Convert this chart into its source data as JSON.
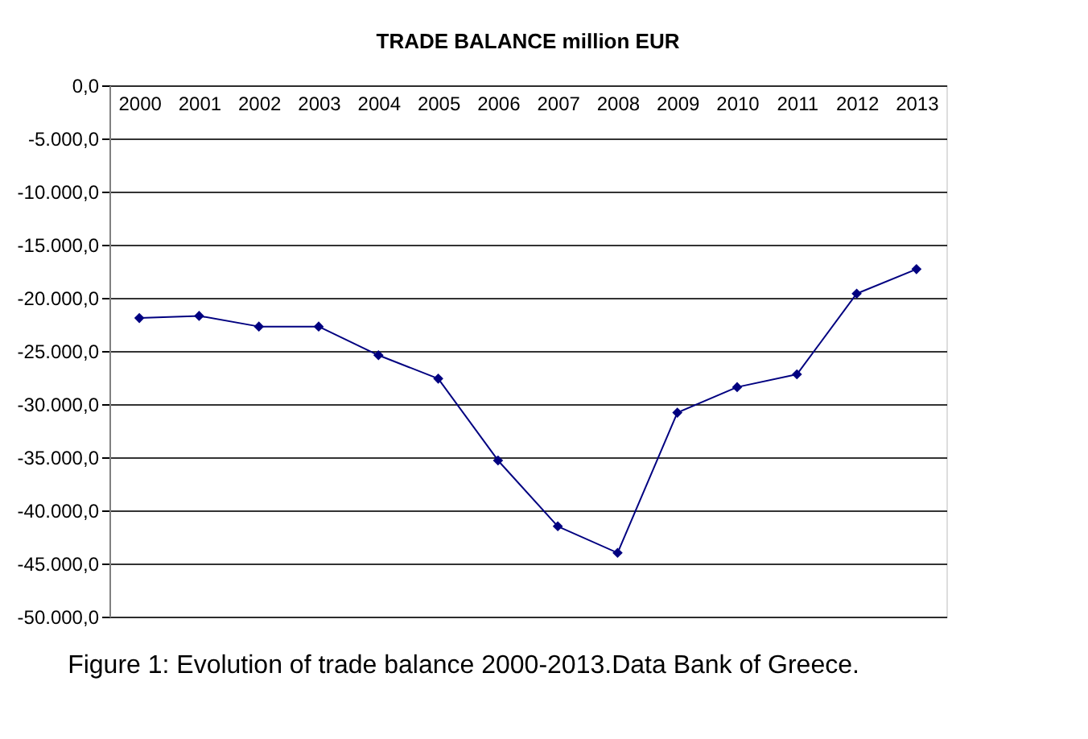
{
  "chart_data": {
    "type": "line",
    "title": "TRADE BALANCE million EUR",
    "categories": [
      "2000",
      "2001",
      "2002",
      "2003",
      "2004",
      "2005",
      "2006",
      "2007",
      "2008",
      "2009",
      "2010",
      "2011",
      "2012",
      "2013"
    ],
    "series": [
      {
        "color": "#000080",
        "values": [
          -21900,
          -21700,
          -22700,
          -22700,
          -25400,
          -27600,
          -35300,
          -41500,
          -44000,
          -30800,
          -28400,
          -27200,
          -19600,
          -17300
        ]
      }
    ],
    "ylim": [
      -50000,
      0
    ],
    "yticks": [
      {
        "value": 0,
        "label": "0,0"
      },
      {
        "value": -5000,
        "label": "-5.000,0"
      },
      {
        "value": -10000,
        "label": "-10.000,0"
      },
      {
        "value": -15000,
        "label": "-15.000,0"
      },
      {
        "value": -20000,
        "label": "-20.000,0"
      },
      {
        "value": -25000,
        "label": "-25.000,0"
      },
      {
        "value": -30000,
        "label": "-30.000,0"
      },
      {
        "value": -35000,
        "label": "-35.000,0"
      },
      {
        "value": -40000,
        "label": "-40.000,0"
      },
      {
        "value": -45000,
        "label": "-45.000,0"
      },
      {
        "value": -50000,
        "label": "-50.000,0"
      }
    ],
    "grid": "y",
    "marker": "diamond",
    "line_style": "solid",
    "annotations": [
      "Figure 1: Evolution of trade balance 2000-2013.Data Bank of Greece."
    ]
  }
}
